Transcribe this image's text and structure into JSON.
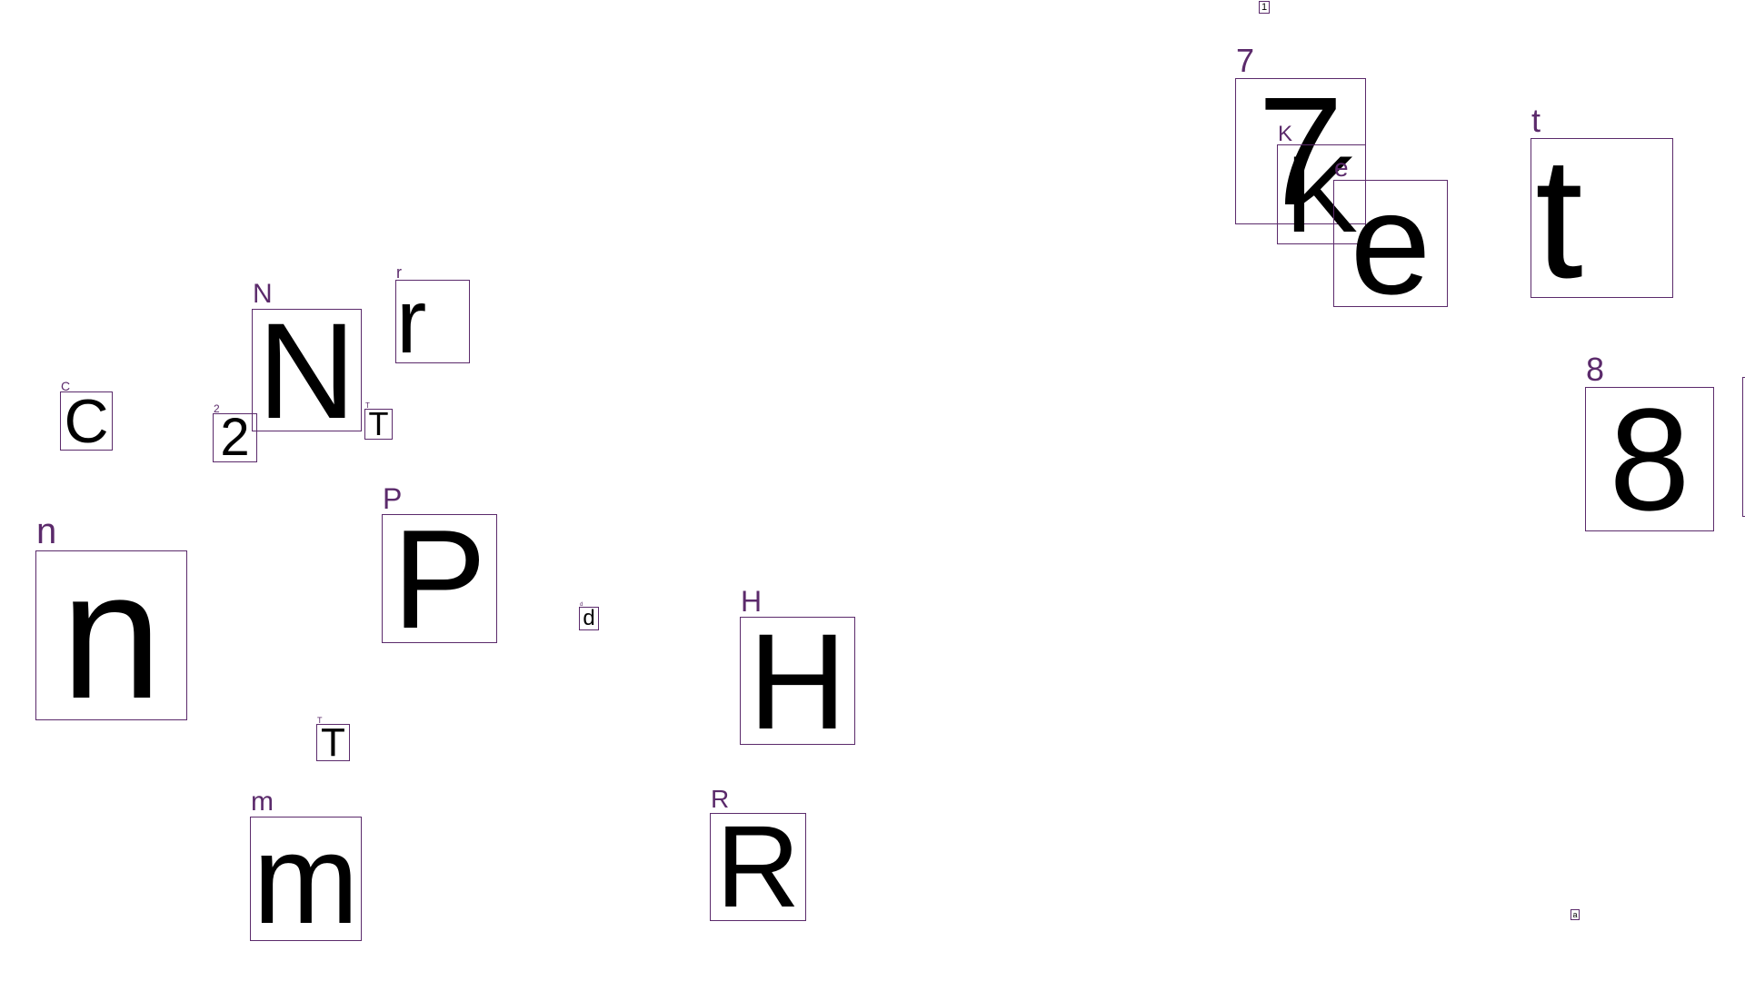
{
  "accent_color": "#5b2a6b",
  "items": [
    {
      "glyph": "1",
      "tag": ""
    },
    {
      "glyph": "7",
      "tag": "7"
    },
    {
      "glyph": "K",
      "tag": "K"
    },
    {
      "glyph": "e",
      "tag": "e"
    },
    {
      "glyph": "t",
      "tag": "t"
    },
    {
      "glyph": "8",
      "tag": "8"
    },
    {
      "glyph": "r",
      "tag": "r"
    },
    {
      "glyph": "N",
      "tag": "N"
    },
    {
      "glyph": "C",
      "tag": "C"
    },
    {
      "glyph": "2",
      "tag": "2"
    },
    {
      "glyph": "T",
      "tag": "T"
    },
    {
      "glyph": "n",
      "tag": "n"
    },
    {
      "glyph": "P",
      "tag": "P"
    },
    {
      "glyph": "d",
      "tag": "d"
    },
    {
      "glyph": "H",
      "tag": "H"
    },
    {
      "glyph": "T",
      "tag": "T"
    },
    {
      "glyph": "m",
      "tag": "m"
    },
    {
      "glyph": "R",
      "tag": "R"
    },
    {
      "glyph": "a",
      "tag": ""
    }
  ]
}
